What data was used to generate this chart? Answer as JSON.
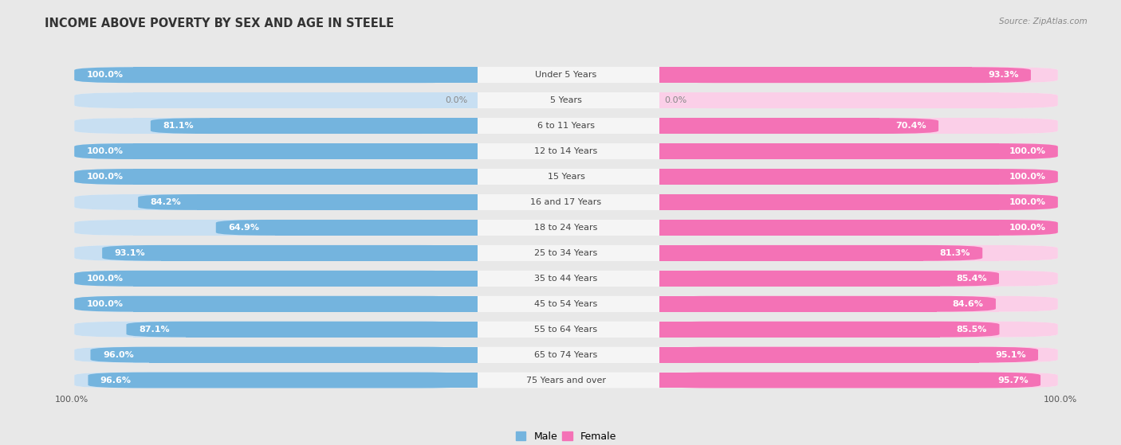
{
  "title": "INCOME ABOVE POVERTY BY SEX AND AGE IN STEELE",
  "source": "Source: ZipAtlas.com",
  "categories": [
    "Under 5 Years",
    "5 Years",
    "6 to 11 Years",
    "12 to 14 Years",
    "15 Years",
    "16 and 17 Years",
    "18 to 24 Years",
    "25 to 34 Years",
    "35 to 44 Years",
    "45 to 54 Years",
    "55 to 64 Years",
    "65 to 74 Years",
    "75 Years and over"
  ],
  "male": [
    100.0,
    0.0,
    81.1,
    100.0,
    100.0,
    84.2,
    64.9,
    93.1,
    100.0,
    100.0,
    87.1,
    96.0,
    96.6
  ],
  "female": [
    93.3,
    0.0,
    70.4,
    100.0,
    100.0,
    100.0,
    100.0,
    81.3,
    85.4,
    84.6,
    85.5,
    95.1,
    95.7
  ],
  "male_color": "#74b4de",
  "female_color": "#f472b6",
  "male_color_light": "#c8dff2",
  "female_color_light": "#fbcfe8",
  "bg_color": "#e8e8e8",
  "row_bg": "#f5f5f5",
  "title_fontsize": 10.5,
  "label_fontsize": 8.0,
  "value_fontsize": 8.0,
  "legend_male": "Male",
  "legend_female": "Female"
}
